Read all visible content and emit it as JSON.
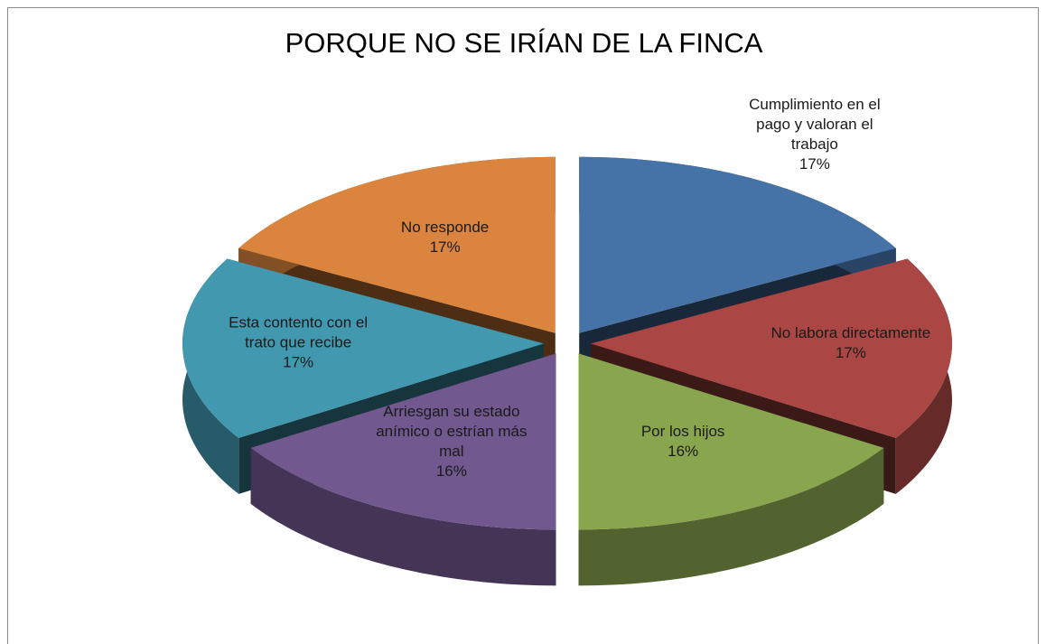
{
  "chart_data": {
    "type": "pie3d",
    "title": "PORQUE NO SE IRÍAN DE LA FINCA",
    "categories": [
      "Cumplimiento en el pago y valoran el trabajo",
      "No  labora directamente",
      "Por los hijos",
      "Arriesgan su estado anímico o estrían más mal",
      "Esta contento con el trato que recibe",
      "No responde"
    ],
    "values": [
      17,
      17,
      16,
      16,
      17,
      17
    ],
    "value_labels": [
      "17%",
      "17%",
      "16%",
      "16%",
      "17%",
      "17%"
    ],
    "colors": [
      "#4572a7",
      "#aa4643",
      "#89a54e",
      "#71588f",
      "#4198af",
      "#db843d"
    ]
  }
}
